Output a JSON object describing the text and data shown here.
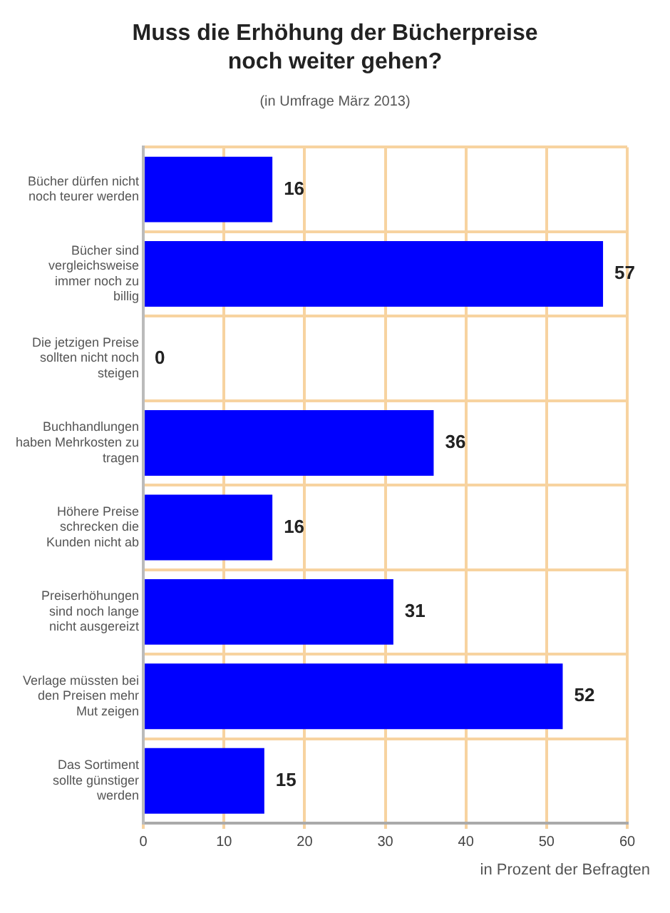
{
  "chart_data": {
    "type": "bar",
    "orientation": "horizontal",
    "title": "Muss die Erhöhung der Bücherpreise noch weiter gehen?",
    "subtitle": "(in Umfrage März 2013)",
    "categories": [
      "Bücher dürfen nicht noch teurer werden",
      "Bücher sind vergleichsweise immer noch zu billig",
      "Die jetzigen Preise sollten nicht noch steigen",
      "Buchhandlungen haben Mehrkosten zu tragen",
      "Höhere Preise schrecken die Kunden nicht ab",
      "Preiserhöhungen sind noch lange nicht ausgereizt",
      "Verlage müssten bei den Preisen mehr Mut zeigen",
      "Das Sortiment sollte günstiger werden"
    ],
    "values": [
      16,
      57,
      0,
      36,
      16,
      31,
      52,
      15
    ],
    "color": "#0000ff",
    "xlim": [
      0,
      60
    ],
    "xticks": [
      0,
      10,
      20,
      30,
      40,
      50,
      60
    ],
    "grid": true,
    "data_labels": true,
    "annotations": [
      "in Prozent der Befragten"
    ]
  }
}
